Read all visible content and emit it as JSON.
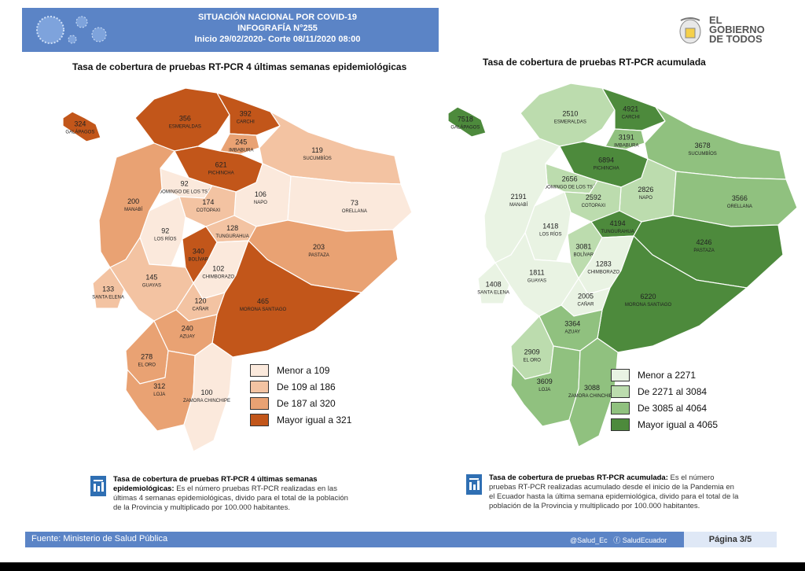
{
  "header": {
    "line1": "SITUACIÓN NACIONAL POR COVID-19",
    "line2": "INFOGRAFÍA N°255",
    "line3": "Inicio 29/02/2020- Corte 08/11/2020 08:00"
  },
  "logo": {
    "line1": "EL",
    "line2": "GOBIERNO",
    "line3": "DE TODOS"
  },
  "left_map": {
    "title": "Tasa de cobertura de pruebas RT-PCR 4 últimas semanas epidemiológicas",
    "legend": [
      "Menor a 109",
      "De 109 al 186",
      "De 187 al 320",
      "Mayor igual a 321"
    ],
    "colors": [
      "#fbe9dc",
      "#f3c3a2",
      "#e9a273",
      "#c2561a"
    ],
    "regions": [
      {
        "name": "GALÁPAGOS",
        "value": "324"
      },
      {
        "name": "ESMERALDAS",
        "value": "356"
      },
      {
        "name": "CARCHI",
        "value": "392"
      },
      {
        "name": "IMBABURA",
        "value": "245"
      },
      {
        "name": "PICHINCHA",
        "value": "621"
      },
      {
        "name": "SUCUMBÍOS",
        "value": "119"
      },
      {
        "name": "SANTO DOMINGO DE LOS TSÁCHILAS",
        "value": "92"
      },
      {
        "name": "MANABÍ",
        "value": "200"
      },
      {
        "name": "NAPO",
        "value": "106"
      },
      {
        "name": "ORELLANA",
        "value": "73"
      },
      {
        "name": "COTOPAXI",
        "value": "174"
      },
      {
        "name": "TUNGURAHUA",
        "value": "128"
      },
      {
        "name": "LOS RÍOS",
        "value": "92"
      },
      {
        "name": "BOLÍVAR",
        "value": "340"
      },
      {
        "name": "PASTAZA",
        "value": "203"
      },
      {
        "name": "CHIMBORAZO",
        "value": "102"
      },
      {
        "name": "GUAYAS",
        "value": "145"
      },
      {
        "name": "SANTA ELENA",
        "value": "133"
      },
      {
        "name": "CAÑAR",
        "value": "120"
      },
      {
        "name": "MORONA SANTIAGO",
        "value": "465"
      },
      {
        "name": "AZUAY",
        "value": "240"
      },
      {
        "name": "EL ORO",
        "value": "278"
      },
      {
        "name": "LOJA",
        "value": "312"
      },
      {
        "name": "ZAMORA CHINCHIPE",
        "value": "100"
      }
    ]
  },
  "right_map": {
    "title": "Tasa de cobertura de pruebas RT-PCR acumulada",
    "legend": [
      "Menor a 2271",
      "De 2271 al 3084",
      "De 3085 al 4064",
      "Mayor igual a 4065"
    ],
    "colors": [
      "#e9f3e3",
      "#bcdcae",
      "#90c17f",
      "#4d8a3c"
    ],
    "regions": [
      {
        "name": "GALÁPAGOS",
        "value": "7518"
      },
      {
        "name": "ESMERALDAS",
        "value": "2510"
      },
      {
        "name": "CARCHI",
        "value": "4921"
      },
      {
        "name": "IMBABURA",
        "value": "3191"
      },
      {
        "name": "PICHINCHA",
        "value": "6894"
      },
      {
        "name": "SUCUMBÍOS",
        "value": "3678"
      },
      {
        "name": "SANTO DOMINGO DE LOS TSÁCHILAS",
        "value": "2656"
      },
      {
        "name": "MANABÍ",
        "value": "2191"
      },
      {
        "name": "NAPO",
        "value": "2826"
      },
      {
        "name": "ORELLANA",
        "value": "3566"
      },
      {
        "name": "COTOPAXI",
        "value": "2592"
      },
      {
        "name": "TUNGURAHUA",
        "value": "4194"
      },
      {
        "name": "LOS RÍOS",
        "value": "1418"
      },
      {
        "name": "BOLÍVAR",
        "value": "3081"
      },
      {
        "name": "PASTAZA",
        "value": "4246"
      },
      {
        "name": "CHIMBORAZO",
        "value": "1283"
      },
      {
        "name": "GUAYAS",
        "value": "1811"
      },
      {
        "name": "SANTA ELENA",
        "value": "1408"
      },
      {
        "name": "CAÑAR",
        "value": "2005"
      },
      {
        "name": "MORONA SANTIAGO",
        "value": "6220"
      },
      {
        "name": "AZUAY",
        "value": "3364"
      },
      {
        "name": "EL ORO",
        "value": "2909"
      },
      {
        "name": "LOJA",
        "value": "3609"
      },
      {
        "name": "ZAMORA CHINCHIPE",
        "value": "3088"
      }
    ]
  },
  "notes": {
    "left_title": "Tasa de cobertura de pruebas RT-PCR 4 últimas semanas epidemiológicas:",
    "left_body": "Es el número pruebas RT-PCR realizadas en las últimas 4 semanas epidemiológicas, divido para el total de la población de la Provincia y multiplicado por 100.000 habitantes.",
    "right_title": "Tasa de cobertura de pruebas RT-PCR acumulada:",
    "right_body": "Es el número pruebas RT-PCR realizadas acumulado desde el inicio de la Pandemia en el Ecuador hasta la última semana epidemiológica, divido para el total de la población de la Provincia y multiplicado por 100.000 habitantes."
  },
  "footer": {
    "source_label": "Fuente:",
    "source": "Ministerio de Salud Pública",
    "twitter": "@Salud_Ec",
    "facebook": "SaludEcuador",
    "page": "Página 3/5"
  }
}
